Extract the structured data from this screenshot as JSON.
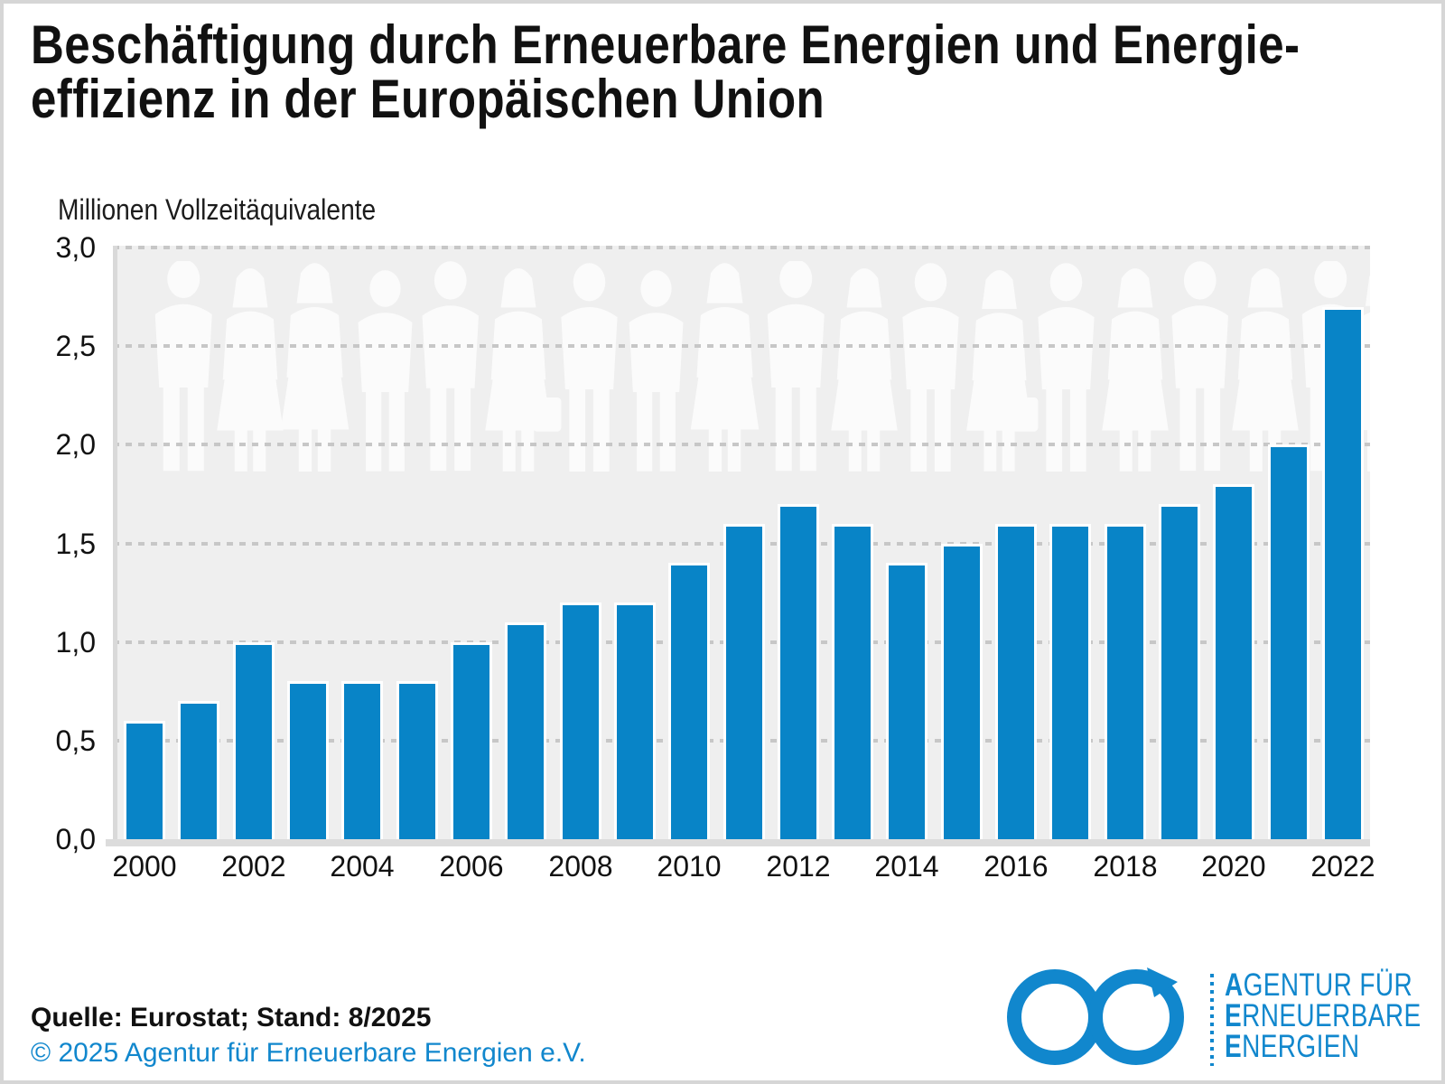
{
  "colors": {
    "bar_blue": "#0884c7",
    "brand_blue": "#1187cd",
    "plot_bg": "#efefef",
    "grid_gray": "#c7c7c7",
    "axis_gray": "#d9d9d9"
  },
  "header": {
    "title_line1": "Beschäftigung durch Erneuerbare Energien und Energie-",
    "title_line2": "effizienz in der Europäischen Union",
    "unit_label": "Millionen Vollzeitäquivalente"
  },
  "chart_data": {
    "type": "bar",
    "title": "Beschäftigung durch Erneuerbare Energien und Energieeffizienz in der Europäischen Union",
    "ylabel": "Millionen Vollzeitäquivalente",
    "xlabel": "",
    "categories": [
      "2000",
      "2001",
      "2002",
      "2003",
      "2004",
      "2005",
      "2006",
      "2007",
      "2008",
      "2009",
      "2010",
      "2011",
      "2012",
      "2013",
      "2014",
      "2015",
      "2016",
      "2017",
      "2018",
      "2019",
      "2020",
      "2021",
      "2022"
    ],
    "values": [
      0.6,
      0.7,
      1.0,
      0.8,
      0.8,
      0.8,
      1.0,
      1.1,
      1.2,
      1.2,
      1.4,
      1.6,
      1.7,
      1.6,
      1.4,
      1.5,
      1.6,
      1.6,
      1.6,
      1.7,
      1.8,
      2.0,
      2.7
    ],
    "ylim": [
      0,
      3
    ],
    "ytick_step": 0.5,
    "ytick_labels": [
      "0,0",
      "0,5",
      "1,0",
      "1,5",
      "2,0",
      "2,5",
      "3,0"
    ],
    "xtick_labels": [
      "2000",
      "2002",
      "2004",
      "2006",
      "2008",
      "2010",
      "2012",
      "2014",
      "2016",
      "2018",
      "2020",
      "2022"
    ],
    "grid": "horizontal-dashed",
    "legend": "none",
    "bar_color": "#0884c7",
    "plot_bg": "#efefef"
  },
  "footer": {
    "source": "Quelle: Eurostat; Stand: 8/2025",
    "copyright": "© 2025 Agentur für Erneuerbare Energien e.V."
  },
  "logo": {
    "icon": "infinity-arrow-icon",
    "line1_bold": "A",
    "line1_rest": "GENTUR FÜR",
    "line2_bold": "E",
    "line2_rest": "RNEUERBARE",
    "line3_bold": "E",
    "line3_rest": "NERGIEN"
  }
}
